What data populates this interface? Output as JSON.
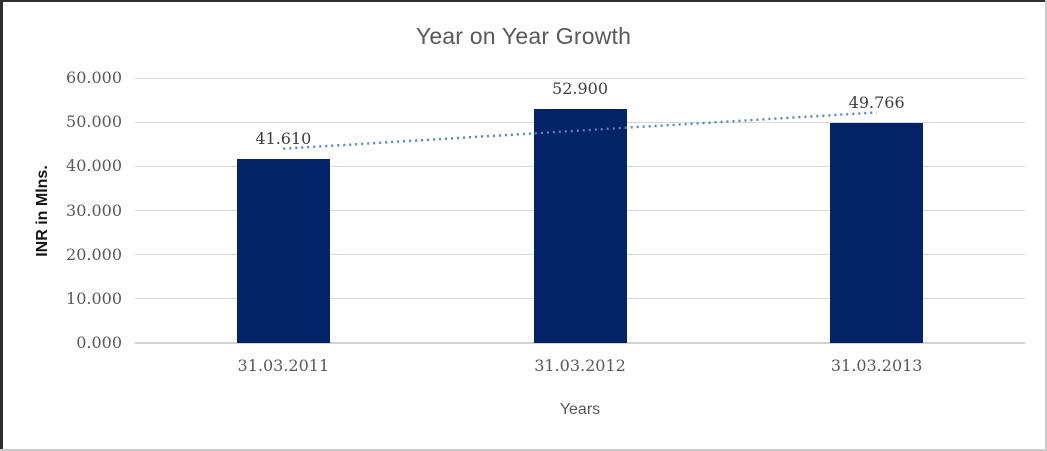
{
  "window": {
    "background_color": "#ffffff",
    "frame_border_dark": "#2e2e2e",
    "frame_border_light": "#cbcbcb"
  },
  "chart_data": {
    "type": "bar",
    "title": "Year on Year Growth",
    "xlabel": "Years",
    "ylabel": "INR in Mlns.",
    "categories": [
      "31.03.2011",
      "31.03.2012",
      "31.03.2013"
    ],
    "values": [
      41.61,
      52.9,
      49.766
    ],
    "data_labels": [
      "41.610",
      "52.900",
      "49.766"
    ],
    "ylim": [
      0,
      60
    ],
    "yticks": [
      {
        "value": 0,
        "label": "0.000"
      },
      {
        "value": 10,
        "label": "10.000"
      },
      {
        "value": 20,
        "label": "20.000"
      },
      {
        "value": 30,
        "label": "30.000"
      },
      {
        "value": 40,
        "label": "40.000"
      },
      {
        "value": 50,
        "label": "50.000"
      },
      {
        "value": 60,
        "label": "60.000"
      }
    ],
    "grid": true,
    "legend": "none",
    "bar_color": "#022366",
    "gridline_color": "#d9d9d9",
    "title_color": "#595959",
    "tick_color": "#595959",
    "trendline": {
      "type": "linear",
      "style": "dotted",
      "color": "#4e86c8",
      "start_value": 44.0,
      "end_value": 52.2
    }
  }
}
